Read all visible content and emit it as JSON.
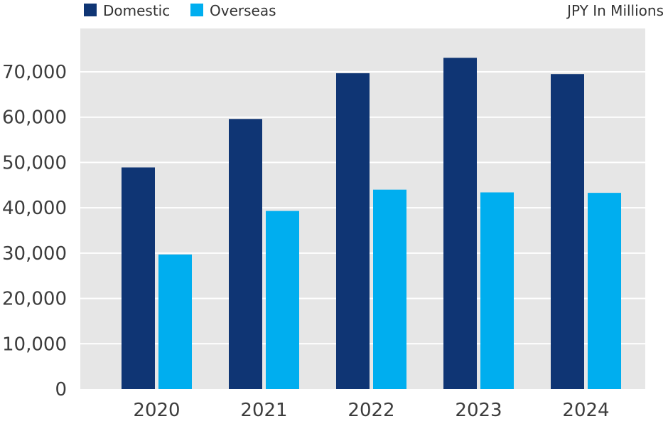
{
  "chart_data": {
    "type": "bar",
    "unit_label": "JPY In Millions",
    "categories": [
      "2020",
      "2021",
      "2022",
      "2023",
      "2024"
    ],
    "series": [
      {
        "name": "Domestic",
        "color": "#0f3574",
        "values": [
          48900,
          59600,
          69700,
          73100,
          69500
        ]
      },
      {
        "name": "Overseas",
        "color": "#00aeef",
        "values": [
          29700,
          39300,
          44000,
          43400,
          43300
        ]
      }
    ],
    "yticks": [
      0,
      10000,
      20000,
      30000,
      40000,
      50000,
      60000,
      70000
    ],
    "ytick_labels": [
      "0",
      "10,000",
      "20,000",
      "30,000",
      "40,000",
      "50,000",
      "60,000",
      "70,000"
    ],
    "ylim": [
      0,
      80000
    ],
    "grid": true,
    "legend_position": "top-left",
    "plot_background": "#e6e6e6"
  }
}
